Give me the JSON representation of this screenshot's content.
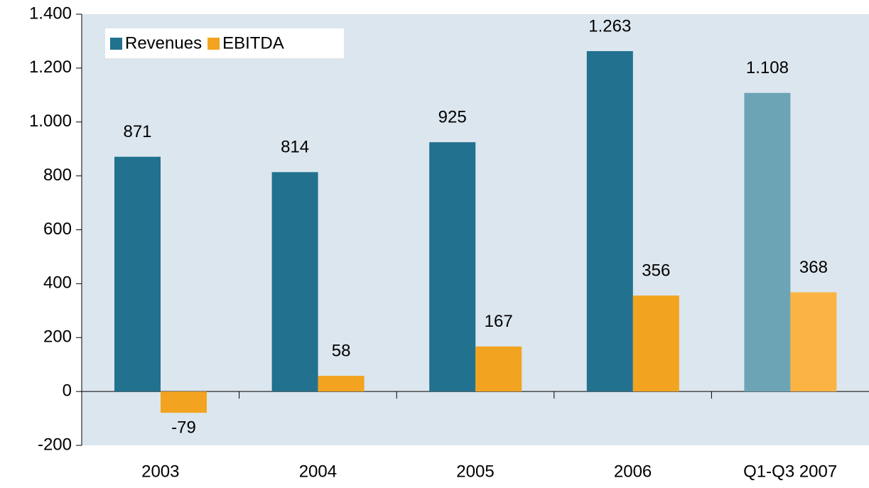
{
  "chart_data": {
    "type": "bar",
    "categories": [
      "2003",
      "2004",
      "2005",
      "2006",
      "Q1-Q3 2007"
    ],
    "series": [
      {
        "name": "Revenues",
        "color": "#21718f",
        "colors": [
          "#21718f",
          "#21718f",
          "#21718f",
          "#21718f",
          "#6ca4b6"
        ],
        "values": [
          871,
          814,
          925,
          1263,
          1108
        ],
        "value_labels": [
          "871",
          "814",
          "925",
          "1.263",
          "1.108"
        ]
      },
      {
        "name": "EBITDA",
        "color": "#f2a31f",
        "colors": [
          "#f2a31f",
          "#f2a31f",
          "#f2a31f",
          "#f2a31f",
          "#fbb443"
        ],
        "values": [
          -79,
          58,
          167,
          356,
          368
        ]
      }
    ],
    "ylim": [
      -200,
      1400
    ],
    "yticks": [
      -200,
      0,
      200,
      400,
      600,
      800,
      {
        "value": 1000,
        "label": "1.000"
      },
      {
        "value": 1200,
        "label": "1.200"
      },
      {
        "value": 1400,
        "label": "1.400"
      }
    ],
    "legend": "upper left",
    "plot_background": "#dce6ee"
  }
}
